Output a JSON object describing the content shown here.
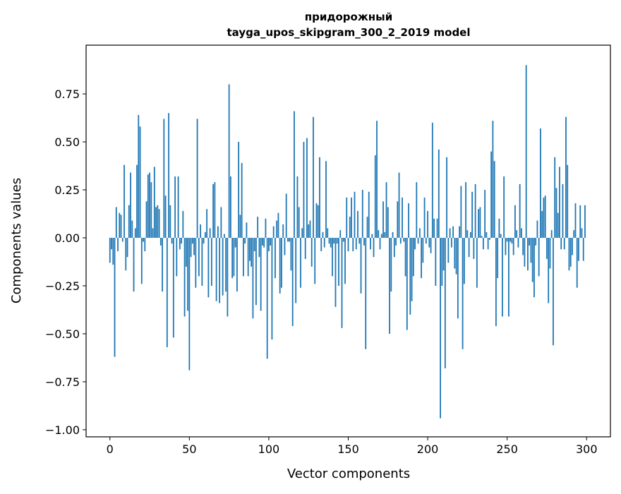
{
  "chart_data": {
    "type": "bar",
    "title_line1": "придорожный",
    "title_line2": "tayga_upos_skipgram_300_2_2019 model",
    "xlabel": "Vector components",
    "ylabel": "Components values",
    "xlim": [
      -15,
      315
    ],
    "ylim": [
      -1.037,
      1.004
    ],
    "xticks": [
      0,
      50,
      100,
      150,
      200,
      250,
      300
    ],
    "xtick_labels": [
      "0",
      "50",
      "100",
      "150",
      "200",
      "250",
      "300"
    ],
    "yticks": [
      -1.0,
      -0.75,
      -0.5,
      -0.25,
      0.0,
      0.25,
      0.5,
      0.75
    ],
    "ytick_labels": [
      "−1.00",
      "−0.75",
      "−0.50",
      "−0.25",
      "0.00",
      "0.25",
      "0.50",
      "0.75"
    ],
    "grid": false,
    "bar_color": "#1f77b4",
    "values": [
      -0.13,
      -0.06,
      -0.14,
      -0.62,
      0.16,
      -0.07,
      0.13,
      0.12,
      -0.02,
      0.38,
      -0.17,
      -0.1,
      0.17,
      0.34,
      0.09,
      -0.28,
      0.05,
      0.38,
      0.64,
      0.58,
      -0.24,
      -0.02,
      -0.07,
      0.19,
      0.33,
      0.34,
      0.29,
      0.05,
      0.37,
      0.16,
      0.17,
      0.15,
      -0.04,
      -0.28,
      0.62,
      0.22,
      -0.57,
      0.65,
      0.17,
      -0.03,
      -0.52,
      0.32,
      -0.2,
      0.32,
      -0.06,
      -0.03,
      0.14,
      -0.41,
      -0.15,
      -0.38,
      -0.69,
      -0.1,
      -0.03,
      -0.09,
      -0.26,
      0.62,
      -0.2,
      0.07,
      -0.25,
      -0.03,
      0.03,
      0.15,
      -0.31,
      0.05,
      -0.25,
      0.28,
      0.29,
      -0.33,
      0.06,
      -0.34,
      0.16,
      -0.3,
      0.02,
      -0.28,
      -0.41,
      0.8,
      0.32,
      -0.21,
      -0.2,
      -0.05,
      -0.28,
      0.5,
      0.12,
      0.39,
      -0.2,
      -0.03,
      0.08,
      -0.2,
      -0.12,
      -0.15,
      -0.42,
      -0.07,
      -0.35,
      0.11,
      -0.1,
      -0.38,
      -0.04,
      -0.05,
      0.1,
      -0.63,
      -0.07,
      -0.04,
      -0.53,
      0.06,
      -0.21,
      0.09,
      0.13,
      -0.29,
      -0.26,
      0.07,
      -0.09,
      0.23,
      -0.02,
      -0.02,
      -0.17,
      -0.46,
      0.66,
      -0.34,
      0.32,
      0.16,
      -0.26,
      0.05,
      0.5,
      -0.11,
      0.52,
      0.07,
      0.09,
      -0.15,
      0.63,
      -0.24,
      0.18,
      0.17,
      0.42,
      -0.07,
      0.03,
      -0.05,
      0.4,
      0.05,
      -0.03,
      -0.05,
      -0.2,
      -0.03,
      -0.36,
      -0.03,
      -0.25,
      0.04,
      -0.47,
      -0.02,
      -0.24,
      0.21,
      -0.07,
      0.11,
      0.21,
      -0.07,
      0.24,
      -0.06,
      0.14,
      -0.03,
      -0.29,
      0.25,
      -0.04,
      -0.58,
      0.11,
      0.24,
      -0.06,
      0.02,
      -0.1,
      0.43,
      0.61,
      0.04,
      -0.06,
      0.02,
      0.19,
      0.03,
      0.29,
      0.16,
      -0.5,
      -0.28,
      0.03,
      -0.1,
      -0.04,
      0.19,
      0.34,
      -0.03,
      0.21,
      -0.02,
      -0.2,
      -0.48,
      0.18,
      -0.4,
      -0.33,
      -0.2,
      -0.06,
      0.29,
      -0.03,
      0.05,
      -0.21,
      -0.13,
      0.21,
      -0.03,
      0.14,
      -0.05,
      -0.08,
      0.6,
      0.1,
      -0.25,
      0.1,
      0.46,
      -0.94,
      -0.25,
      -0.17,
      -0.68,
      0.42,
      -0.13,
      0.05,
      -0.05,
      0.06,
      -0.16,
      -0.19,
      -0.42,
      0.06,
      0.27,
      -0.58,
      -0.24,
      0.29,
      0.04,
      -0.1,
      0.03,
      0.24,
      -0.11,
      0.28,
      -0.26,
      0.15,
      0.16,
      0.01,
      -0.06,
      0.25,
      0.03,
      -0.06,
      -0.01,
      0.45,
      0.61,
      0.4,
      -0.46,
      -0.21,
      0.1,
      0.02,
      -0.41,
      0.32,
      -0.09,
      -0.02,
      -0.41,
      -0.02,
      -0.03,
      -0.09,
      0.17,
      0.04,
      -0.05,
      0.28,
      0.05,
      -0.09,
      -0.15,
      0.9,
      -0.17,
      -0.04,
      -0.13,
      -0.23,
      -0.31,
      -0.04,
      0.09,
      -0.2,
      0.57,
      0.14,
      0.21,
      0.22,
      -0.11,
      -0.34,
      -0.16,
      0.04,
      -0.56,
      0.42,
      0.26,
      0.13,
      0.37,
      -0.06,
      0.28,
      -0.06,
      0.63,
      0.38,
      -0.17,
      -0.15,
      -0.09,
      0.04,
      0.18,
      -0.26,
      -0.12,
      0.17,
      0.05,
      -0.12,
      0.17
    ]
  }
}
